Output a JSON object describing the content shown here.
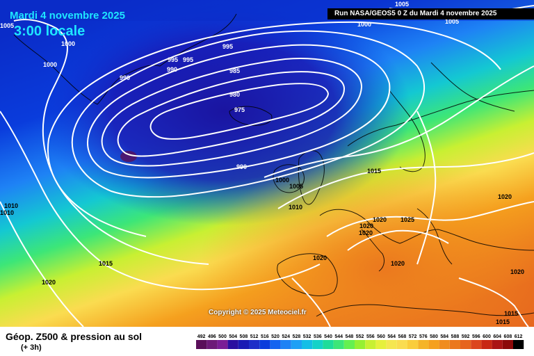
{
  "header": {
    "date": "Mardi 4 novembre 2025",
    "time": "3:00 locale",
    "run": "Run NASA/GEOS5 0 Z du Mardi 4 novembre 2025"
  },
  "copyright": "Copyright © 2025 Meteociel.fr",
  "legend": {
    "title": "Géop. Z500 & pression au sol",
    "subtitle": "(+ 3h)",
    "scale_values": [
      "492",
      "496",
      "500",
      "504",
      "508",
      "512",
      "516",
      "520",
      "524",
      "528",
      "532",
      "536",
      "540",
      "544",
      "548",
      "552",
      "556",
      "560",
      "564",
      "568",
      "572",
      "576",
      "580",
      "584",
      "588",
      "592",
      "596",
      "600",
      "604",
      "608",
      "612"
    ],
    "scale_colors": [
      "#5a0f5a",
      "#6d1a78",
      "#7a1e96",
      "#2a0fa0",
      "#1a1ab4",
      "#1e2ec8",
      "#0a3cdc",
      "#1464f0",
      "#1e82f5",
      "#1ea0f5",
      "#14bee6",
      "#14d2c8",
      "#1edc9a",
      "#3ce678",
      "#64f050",
      "#96f032",
      "#c8f032",
      "#e6f03c",
      "#f5e650",
      "#fadc50",
      "#facd3c",
      "#f5b428",
      "#f5a01e",
      "#f08c1e",
      "#eb781e",
      "#e6641e",
      "#dc461e",
      "#c82814",
      "#aa1414",
      "#8c0a0a",
      "#000000"
    ]
  },
  "isobar_labels": [
    "1005",
    "1005",
    "1000",
    "1000",
    "1000",
    "1005",
    "995",
    "995",
    "995",
    "990",
    "990",
    "985",
    "980",
    "975",
    "990",
    "1015",
    "1000",
    "1005",
    "1010",
    "1010",
    "1010",
    "1015",
    "1020",
    "1020",
    "1025",
    "1020",
    "1020",
    "1020",
    "1020",
    "1020",
    "1020",
    "1015",
    "1015"
  ]
}
